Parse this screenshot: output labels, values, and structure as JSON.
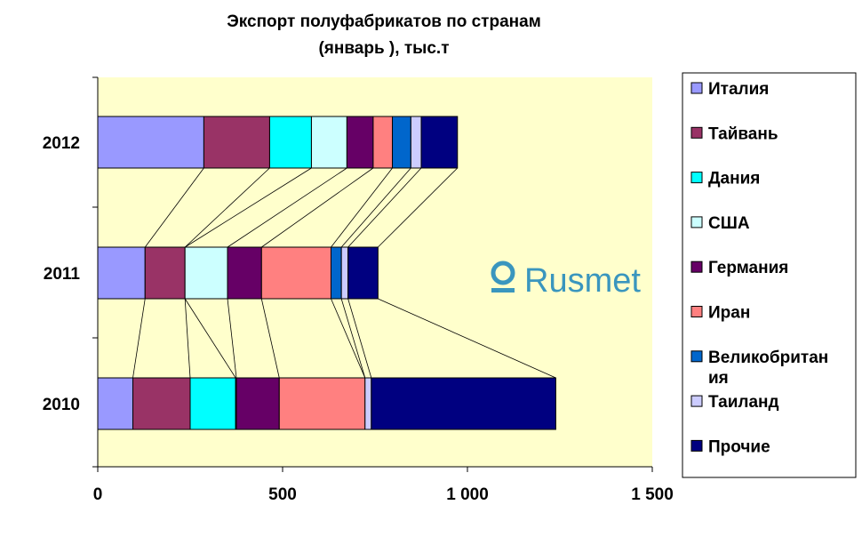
{
  "chart_data": {
    "type": "bar",
    "orientation": "horizontal",
    "stacked": true,
    "title": [
      "Экспорт полуфабрикатов по странам",
      "(январь ), тыс.т"
    ],
    "categories": [
      "2012",
      "2011",
      "2010"
    ],
    "xlim": [
      0,
      1500
    ],
    "xticks": [
      0,
      500,
      1000,
      1500
    ],
    "xtick_labels": [
      "0",
      "500",
      "1 000",
      "1 500"
    ],
    "legend_position": "right",
    "grid": false,
    "plot_background": "#FFFFCC",
    "series_lines": true,
    "watermark": "Rusmet",
    "series": [
      {
        "name": "Италия",
        "color": "#9999FF",
        "values": [
          287,
          128,
          95
        ]
      },
      {
        "name": "Тайвань",
        "color": "#993366",
        "values": [
          178,
          108,
          155
        ]
      },
      {
        "name": "Дания",
        "color": "#00FFFF",
        "values": [
          113,
          0,
          123
        ]
      },
      {
        "name": "США",
        "color": "#CCFFFF",
        "values": [
          96,
          115,
          2
        ]
      },
      {
        "name": "Германия",
        "color": "#660066",
        "values": [
          71,
          92,
          116
        ]
      },
      {
        "name": "Иран",
        "color": "#FF8080",
        "values": [
          52,
          188,
          232
        ]
      },
      {
        "name": "Великобритан ия",
        "color": "#0066CC",
        "values": [
          50,
          28,
          0
        ]
      },
      {
        "name": "Таиланд",
        "color": "#CCCCFF",
        "values": [
          28,
          18,
          17
        ]
      },
      {
        "name": "Прочие",
        "color": "#000080",
        "values": [
          98,
          81,
          499
        ]
      }
    ]
  }
}
